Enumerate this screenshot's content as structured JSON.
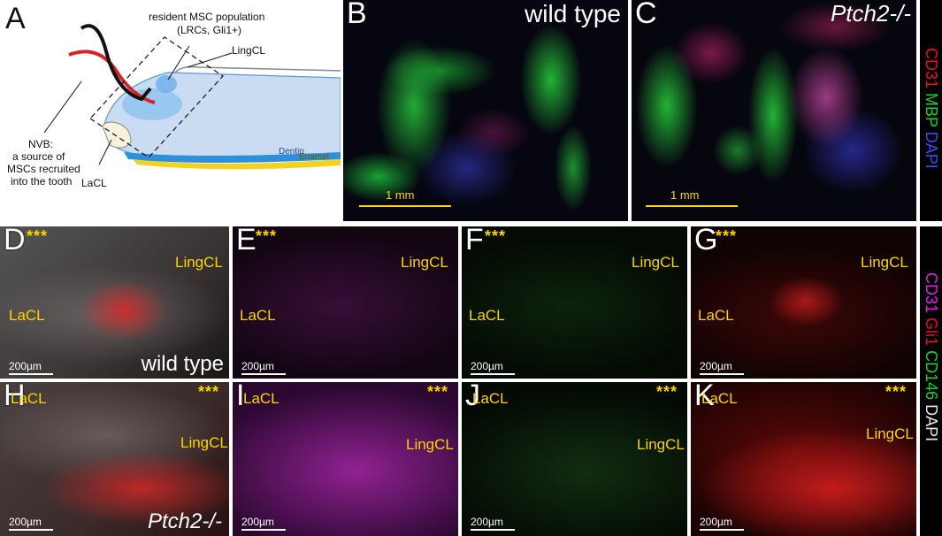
{
  "panels": {
    "A": {
      "label": "A",
      "msc_population": "resident MSC population",
      "msc_sub": "(LRCs, Gli1+)",
      "lingcl": "LingCL",
      "nvb_1": "NVB:",
      "nvb_2": "a source of",
      "nvb_3": "MSCs recruited",
      "nvb_4": "into the tooth",
      "lacl": "LaCL",
      "dentin": "Dentin",
      "enamel": "Enamel"
    },
    "B": {
      "label": "B",
      "condition": "wild type",
      "scale": "1 mm"
    },
    "C": {
      "label": "C",
      "condition": "Ptch2-/-",
      "scale": "1 mm"
    },
    "D": {
      "label": "D",
      "stars": "***",
      "lingcl": "LingCL",
      "lacl": "LaCL",
      "scale": "200µm",
      "condition": "wild type"
    },
    "E": {
      "label": "E",
      "stars": "***",
      "lingcl": "LingCL",
      "lacl": "LaCL",
      "scale": "200µm"
    },
    "F": {
      "label": "F",
      "stars": "***",
      "lingcl": "LingCL",
      "lacl": "LaCL",
      "scale": "200µm"
    },
    "G": {
      "label": "G",
      "stars": "***",
      "lingcl": "LingCL",
      "lacl": "LaCL",
      "scale": "200µm"
    },
    "H": {
      "label": "H",
      "stars": "***",
      "lingcl": "LingCL",
      "lacl": "LaCL",
      "scale": "200µm",
      "condition": "Ptch2-/-"
    },
    "I": {
      "label": "I",
      "stars": "***",
      "lingcl": "LingCL",
      "lacl": "LaCL",
      "scale": "200µm"
    },
    "J": {
      "label": "J",
      "stars": "***",
      "lingcl": "LingCL",
      "lacl": "LaCL",
      "scale": "200µm"
    },
    "K": {
      "label": "K",
      "stars": "***",
      "lingcl": "LingCL",
      "lacl": "LaCL",
      "scale": "200µm"
    }
  },
  "legend_top": [
    {
      "text": "CD31",
      "color": "#e8102a"
    },
    {
      "text": "MBP",
      "color": "#1fd02a"
    },
    {
      "text": "DAPI",
      "color": "#3a4dff"
    }
  ],
  "legend_bottom": [
    {
      "text": "CD31",
      "color": "#e020e8"
    },
    {
      "text": "Gli1",
      "color": "#e8102a"
    },
    {
      "text": "CD146",
      "color": "#1fd02a"
    },
    {
      "text": "DAPI",
      "color": "#e8e8e8"
    }
  ]
}
